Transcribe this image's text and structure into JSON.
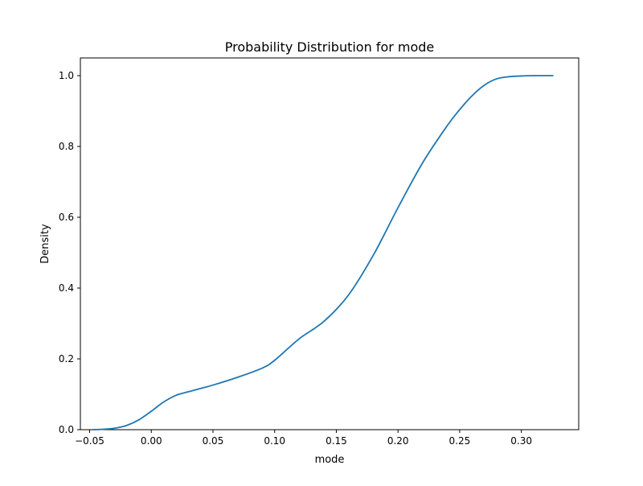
{
  "chart_data": {
    "type": "line",
    "title": "Probability Distribution for mode",
    "xlabel": "mode",
    "ylabel": "Density",
    "xlim": [
      -0.0575,
      0.3465
    ],
    "ylim": [
      0.0,
      1.05
    ],
    "grid": false,
    "legend": "none",
    "x_ticks": [
      {
        "value": -0.05,
        "label": "−0.05"
      },
      {
        "value": 0.0,
        "label": "0.00"
      },
      {
        "value": 0.05,
        "label": "0.05"
      },
      {
        "value": 0.1,
        "label": "0.10"
      },
      {
        "value": 0.15,
        "label": "0.15"
      },
      {
        "value": 0.2,
        "label": "0.20"
      },
      {
        "value": 0.25,
        "label": "0.25"
      },
      {
        "value": 0.3,
        "label": "0.30"
      }
    ],
    "y_ticks": [
      {
        "value": 0.0,
        "label": "0.0"
      },
      {
        "value": 0.2,
        "label": "0.2"
      },
      {
        "value": 0.4,
        "label": "0.4"
      },
      {
        "value": 0.6,
        "label": "0.6"
      },
      {
        "value": 0.8,
        "label": "0.8"
      },
      {
        "value": 1.0,
        "label": "1.0"
      }
    ],
    "series": [
      {
        "color": "#1f77b4",
        "x": [
          -0.048,
          -0.04,
          -0.03,
          -0.02,
          -0.01,
          0.0,
          0.01,
          0.02,
          0.03,
          0.05,
          0.07,
          0.09,
          0.1,
          0.12,
          0.14,
          0.16,
          0.18,
          0.2,
          0.22,
          0.24,
          0.25,
          0.26,
          0.27,
          0.28,
          0.29,
          0.3,
          0.31,
          0.326
        ],
        "y": [
          0.0,
          0.001,
          0.004,
          0.012,
          0.028,
          0.052,
          0.078,
          0.097,
          0.107,
          0.126,
          0.148,
          0.174,
          0.196,
          0.257,
          0.306,
          0.381,
          0.493,
          0.627,
          0.754,
          0.859,
          0.904,
          0.943,
          0.973,
          0.991,
          0.997,
          0.999,
          1.0,
          1.0
        ]
      }
    ]
  }
}
